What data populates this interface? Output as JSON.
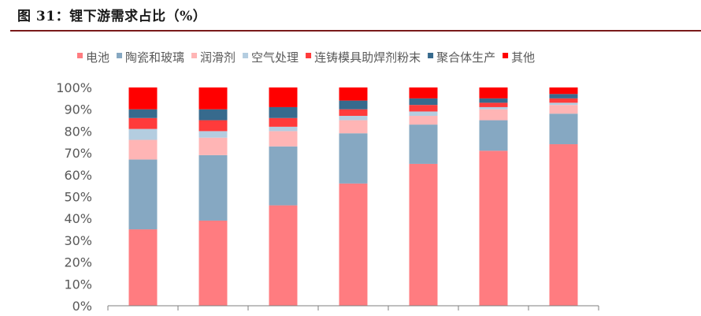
{
  "figure": {
    "title": "图 31：锂下游需求占比（%）"
  },
  "colors": {
    "title_rule": "#7a1a1a",
    "axis": "#7f7f7f"
  },
  "chart_data": {
    "type": "bar",
    "stacked": true,
    "title": "",
    "xlabel": "",
    "ylabel": "",
    "ylim": [
      0,
      100
    ],
    "y_ticks": [
      "0%",
      "10%",
      "20%",
      "30%",
      "40%",
      "50%",
      "60%",
      "70%",
      "80%",
      "90%",
      "100%"
    ],
    "categories": [
      "",
      "",
      "",
      "",
      "",
      "",
      ""
    ],
    "legend_position": "top",
    "series": [
      {
        "name": "电池",
        "color": "#ff7c80",
        "values": [
          35,
          39,
          46,
          56,
          65,
          71,
          74
        ]
      },
      {
        "name": "陶瓷和玻璃",
        "color": "#86a8c2",
        "values": [
          32,
          30,
          27,
          23,
          18,
          14,
          14
        ]
      },
      {
        "name": "润滑剂",
        "color": "#ffb5b5",
        "values": [
          9,
          8,
          7,
          6,
          4,
          5,
          4
        ]
      },
      {
        "name": "空气处理",
        "color": "#b4cde0",
        "values": [
          5,
          3,
          2,
          2,
          2,
          1,
          1
        ]
      },
      {
        "name": "连铸模具助焊剂粉末",
        "color": "#ff3b3b",
        "values": [
          5,
          5,
          4,
          3,
          3,
          2,
          2
        ]
      },
      {
        "name": "聚合体生产",
        "color": "#376a8d",
        "values": [
          4,
          5,
          5,
          4,
          3,
          2,
          2
        ]
      },
      {
        "name": "其他",
        "color": "#ff0000",
        "values": [
          10,
          10,
          9,
          6,
          5,
          5,
          3
        ]
      }
    ]
  }
}
